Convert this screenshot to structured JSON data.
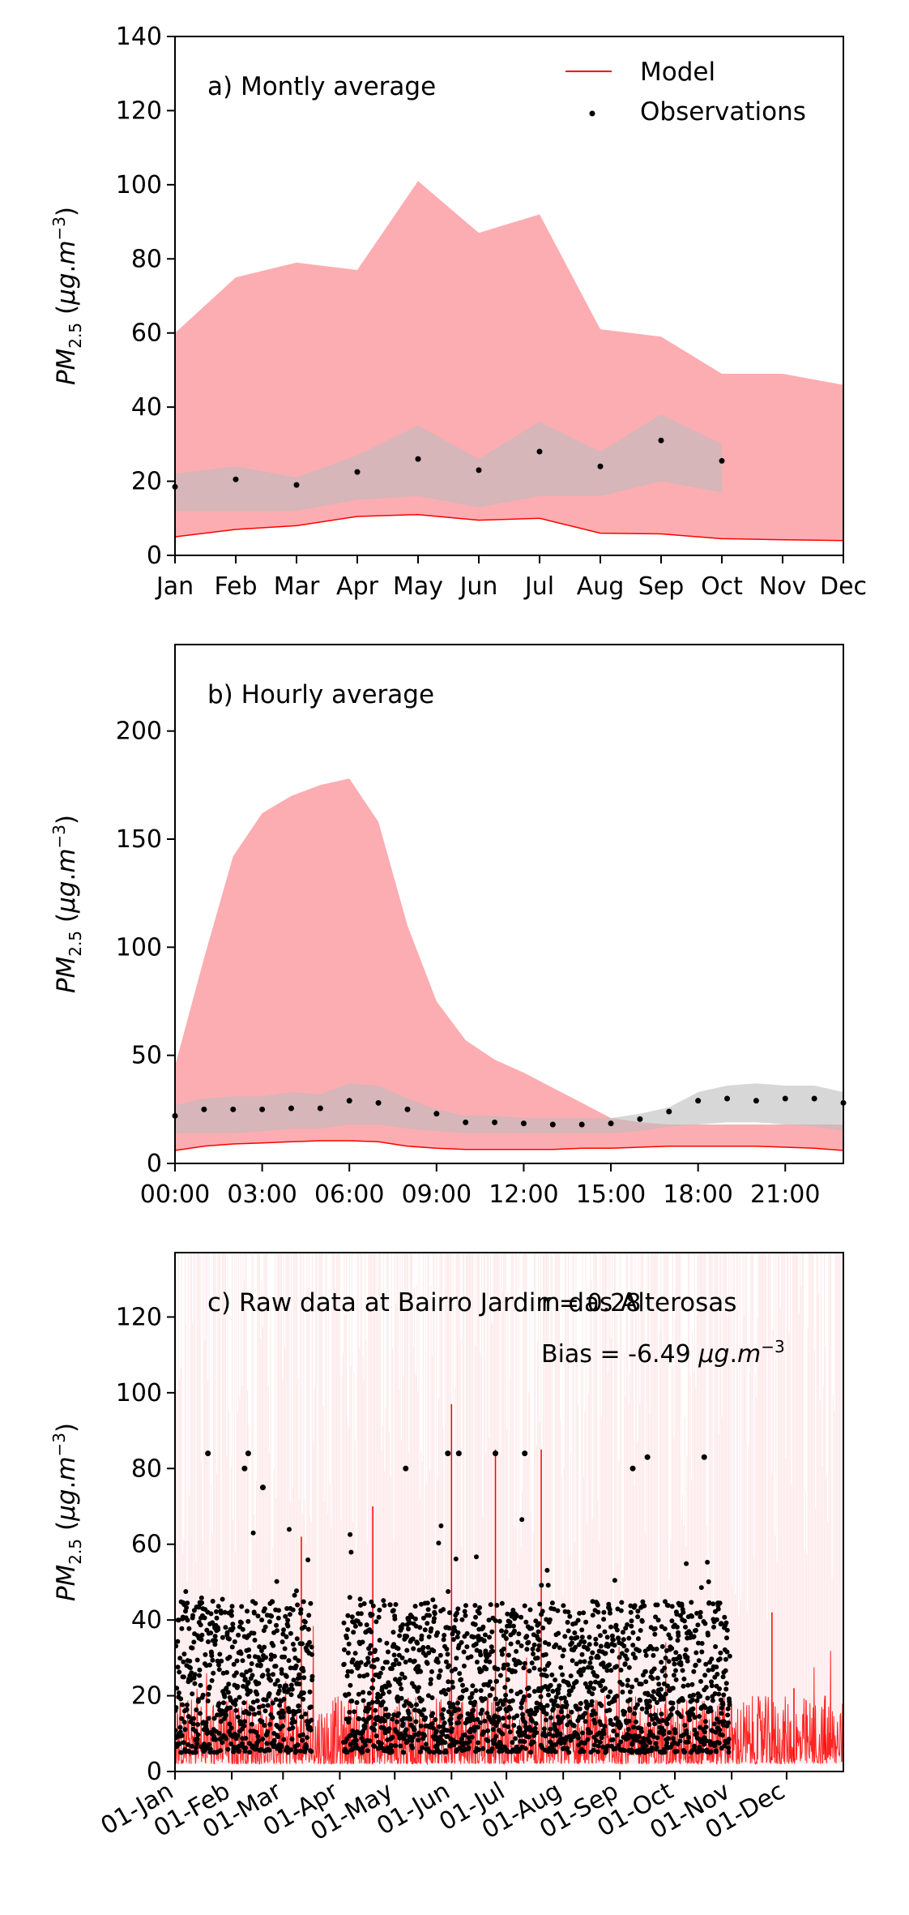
{
  "chart_data": [
    {
      "type": "area",
      "title": "a) Montly average",
      "ylabel": "PM2.5 (μg.m−3)",
      "ylim": [
        0,
        140
      ],
      "yticks": [
        0,
        20,
        40,
        60,
        80,
        100,
        120,
        140
      ],
      "categories": [
        "Jan",
        "Feb",
        "Mar",
        "Apr",
        "May",
        "Jun",
        "Jul",
        "Aug",
        "Sep",
        "Oct",
        "Nov",
        "Dec"
      ],
      "legend": {
        "position": "top-right",
        "model_label": "Model",
        "obs_label": "Observations"
      },
      "series": [
        {
          "name": "Model",
          "type": "line",
          "color": "#ff0000",
          "values": [
            5,
            7,
            8,
            10.5,
            11,
            9.5,
            10,
            6,
            5.8,
            4.5,
            4.2,
            4
          ]
        },
        {
          "type": "band",
          "color": "#fca9ad",
          "lower": [
            5,
            7,
            8,
            10.5,
            11,
            9.5,
            10,
            6,
            5.8,
            4.5,
            4.2,
            4
          ],
          "upper": [
            60,
            75,
            79,
            77,
            101,
            87,
            92,
            61,
            59,
            49,
            49,
            46
          ]
        },
        {
          "type": "band",
          "color": "#bdbdbd",
          "lower": [
            12,
            12,
            12,
            15,
            16,
            13,
            16,
            16,
            20,
            17,
            null,
            null
          ],
          "upper": [
            22,
            24,
            21,
            27,
            35,
            26,
            36,
            28,
            38,
            30,
            null,
            null
          ]
        },
        {
          "name": "Observations",
          "type": "points",
          "color": "#000000",
          "values": [
            18.5,
            20.5,
            19,
            22.5,
            26,
            23,
            28,
            24,
            31,
            25.5,
            null,
            null
          ]
        }
      ]
    },
    {
      "type": "area",
      "title": "b) Hourly average",
      "ylabel": "PM2.5 (μg.m−3)",
      "ylim": [
        0,
        240
      ],
      "yticks": [
        0,
        50,
        100,
        150,
        200
      ],
      "x": [
        0,
        1,
        2,
        3,
        4,
        5,
        6,
        7,
        8,
        9,
        10,
        11,
        12,
        13,
        14,
        15,
        16,
        17,
        18,
        19,
        20,
        21,
        22,
        23
      ],
      "xticks": [
        0,
        3,
        6,
        9,
        12,
        15,
        18,
        21
      ],
      "xticklabels": [
        "00:00",
        "03:00",
        "06:00",
        "09:00",
        "12:00",
        "15:00",
        "18:00",
        "21:00"
      ],
      "series": [
        {
          "name": "Model",
          "type": "line",
          "color": "#ff0000",
          "values": [
            6,
            8,
            9,
            9.5,
            10,
            10.5,
            10.5,
            10,
            8,
            7,
            6.5,
            6.5,
            6.5,
            6.5,
            7,
            7,
            7.5,
            8,
            8,
            8,
            8,
            7.5,
            7,
            6
          ]
        },
        {
          "type": "band",
          "color": "#fca9ad",
          "lower": [
            6,
            8,
            9,
            9.5,
            10,
            10.5,
            10.5,
            10,
            8,
            7,
            6.5,
            6.5,
            6.5,
            6.5,
            7,
            7,
            7.5,
            8,
            8,
            8,
            8,
            7.5,
            7,
            6
          ],
          "upper": [
            45,
            95,
            142,
            162,
            170,
            175,
            178,
            158,
            110,
            75,
            57,
            48,
            42,
            35,
            28,
            21,
            19,
            18,
            18,
            18,
            18,
            18,
            18,
            18
          ]
        },
        {
          "type": "band",
          "color": "#bdbdbd",
          "lower": [
            14,
            14,
            14,
            15,
            16,
            16,
            18,
            18,
            16,
            15,
            14,
            14,
            14,
            14,
            14,
            14,
            15,
            17,
            18,
            19,
            19,
            18,
            17,
            15
          ],
          "upper": [
            27,
            30,
            31,
            31,
            33,
            32,
            37,
            36,
            30,
            25,
            22,
            22,
            21,
            21,
            21,
            21,
            23,
            26,
            33,
            36,
            37,
            36,
            36,
            33
          ]
        },
        {
          "name": "Observations",
          "type": "points",
          "color": "#000000",
          "values": [
            22,
            25,
            25,
            25,
            25.5,
            25.5,
            29,
            28,
            25,
            23,
            19,
            19,
            18.5,
            18,
            18,
            18.5,
            20.5,
            24,
            29,
            30,
            29,
            30,
            30,
            28
          ]
        }
      ]
    },
    {
      "type": "line",
      "title": "c) Raw data at Bairro Jardim das Alterosas",
      "ylabel": "PM2.5 (μg.m−3)",
      "ylim": [
        0,
        137
      ],
      "yticks": [
        0,
        20,
        40,
        60,
        80,
        100,
        120
      ],
      "xrange_days": [
        0,
        365
      ],
      "xticks_days": [
        0,
        31,
        59,
        90,
        120,
        151,
        181,
        212,
        243,
        273,
        304,
        334
      ],
      "xticklabels": [
        "01-Jan",
        "01-Feb",
        "01-Mar",
        "01-Apr",
        "01-May",
        "01-Jun",
        "01-Jul",
        "01-Aug",
        "01-Sep",
        "01-Oct",
        "01-Nov",
        "01-Dec"
      ],
      "annotations": {
        "r": "r = 0.28",
        "bias": "Bias = -6.49 μg.m−3"
      },
      "series": [
        {
          "name": "Model",
          "type": "line",
          "color": "#ff0000",
          "typical_range": [
            2,
            20
          ],
          "peaks": [
            [
              69,
              62
            ],
            [
              108,
              70
            ],
            [
              151,
              97
            ],
            [
              175,
              85
            ],
            [
              200,
              85
            ],
            [
              326,
              42
            ],
            [
              338,
              22
            ],
            [
              355,
              20
            ]
          ]
        },
        {
          "name": "Observations",
          "type": "points",
          "color": "#000000",
          "segments_days": [
            [
              0,
              75
            ],
            [
              92,
              303
            ]
          ],
          "typical_range": [
            5,
            45
          ],
          "high_points": [
            [
              18,
              84
            ],
            [
              40,
              84
            ],
            [
              38,
              80
            ],
            [
              48,
              75
            ],
            [
              126,
              80
            ],
            [
              149,
              84
            ],
            [
              155,
              84
            ],
            [
              175,
              84
            ],
            [
              191,
              84
            ],
            [
              250,
              80
            ],
            [
              258,
              83
            ],
            [
              289,
              83
            ]
          ]
        },
        {
          "type": "band",
          "color": "#fca9ad",
          "note": "min–max envelope extends above plot top"
        }
      ]
    }
  ]
}
